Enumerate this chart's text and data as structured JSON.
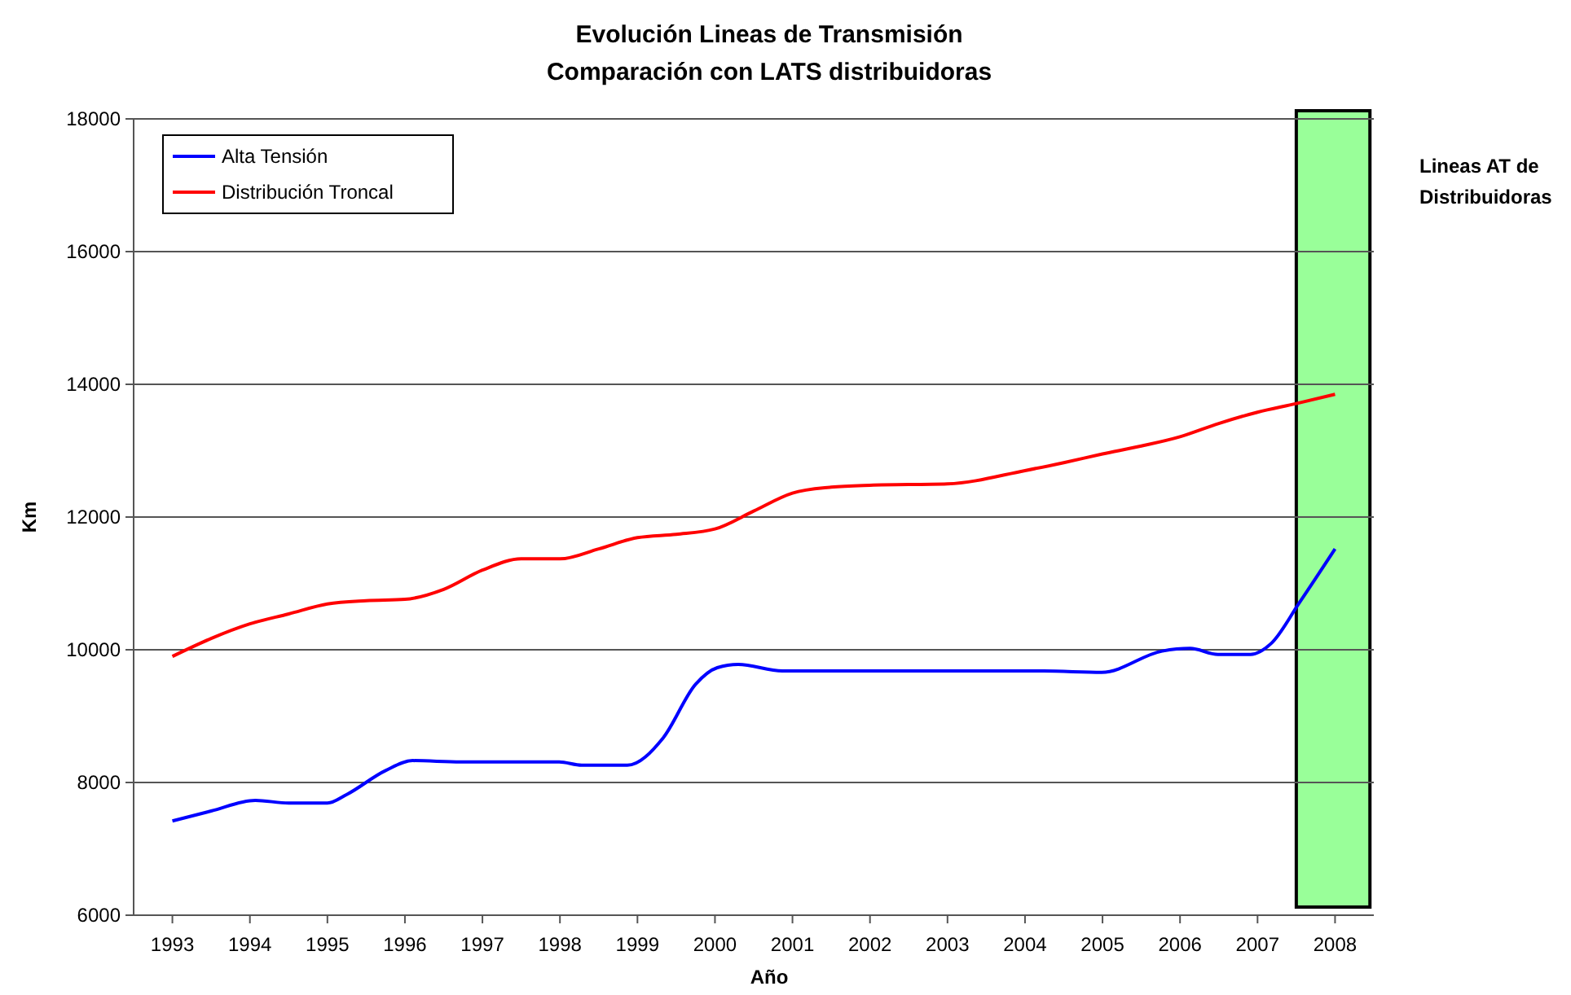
{
  "chart_data": {
    "type": "line",
    "title": "Evolución Lineas de Transmisión",
    "subtitle": "Comparación con LATS distribuidoras",
    "xlabel": "Año",
    "ylabel": "Km",
    "xlim": [
      1992.5,
      2008.5
    ],
    "xticks": [
      1993,
      1994,
      1995,
      1996,
      1997,
      1998,
      1999,
      2000,
      2001,
      2002,
      2003,
      2004,
      2005,
      2006,
      2007,
      2008
    ],
    "ylim": [
      6000,
      18000
    ],
    "yticks": [
      6000,
      8000,
      10000,
      12000,
      14000,
      16000,
      18000
    ],
    "grid": "y",
    "legend": "top left",
    "marker": "none",
    "line_style": "solid",
    "series": [
      {
        "name": "Alta Tensión",
        "color": "#0000ff",
        "x": [
          1993,
          1993.5,
          1994.07,
          1994.5,
          1995,
          1995.25,
          1995.75,
          1996.1,
          1996.72,
          1997.99,
          1998.28,
          1998.87,
          1999.33,
          1999.75,
          2000.03,
          2000.3,
          2000.87,
          2004.24,
          2004.99,
          2005.77,
          2006.13,
          2006.49,
          2006.91,
          2007.18,
          2007.54,
          2008
        ],
        "values": [
          7420,
          7570,
          7730,
          7690,
          7690,
          7820,
          8180,
          8330,
          8310,
          8310,
          8260,
          8260,
          8670,
          9480,
          9730,
          9780,
          9680,
          9680,
          9660,
          9980,
          10020,
          9930,
          9930,
          10100,
          10710,
          11520
        ]
      },
      {
        "name": "Distribución Troncal",
        "color": "#ff0000",
        "x": [
          1993,
          1993.5,
          1994,
          1994.5,
          1995,
          1995.5,
          1996,
          1996.5,
          1997,
          1997.5,
          1998,
          1998.5,
          1999,
          1999.5,
          2000,
          2000.5,
          2001,
          2001.5,
          2002,
          2003,
          2004,
          2004.5,
          2005,
          2005.5,
          2006,
          2006.5,
          2007,
          2007.5,
          2008
        ],
        "values": [
          9900,
          10170,
          10390,
          10540,
          10690,
          10740,
          10760,
          10910,
          11200,
          11370,
          11370,
          11520,
          11690,
          11740,
          11820,
          12090,
          12360,
          12450,
          12480,
          12500,
          12700,
          12820,
          12950,
          13070,
          13210,
          13410,
          13580,
          13710,
          13850
        ]
      }
    ],
    "bands": [
      {
        "axis": "x",
        "from": 2007.5,
        "to": 2008.45,
        "label": "Lineas AT de Distribuidoras",
        "color": "#99ff99"
      }
    ]
  }
}
